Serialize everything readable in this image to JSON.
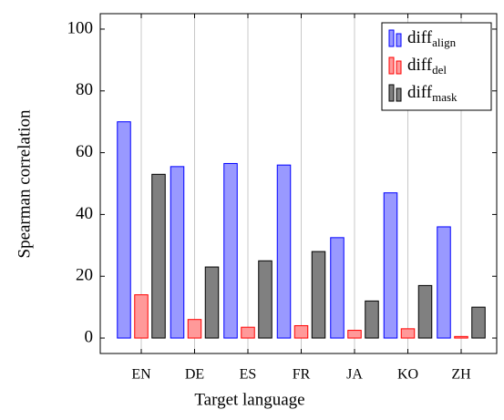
{
  "chart_data": {
    "type": "bar",
    "categories": [
      "EN",
      "DE",
      "ES",
      "FR",
      "JA",
      "KO",
      "ZH"
    ],
    "series": [
      {
        "name": "diff",
        "name_sub": "align",
        "color": "#9999ff",
        "edge": "#0000ff",
        "values": [
          70,
          55.5,
          56.5,
          56,
          32.5,
          47,
          36
        ]
      },
      {
        "name": "diff",
        "name_sub": "del",
        "color": "#ff9999",
        "edge": "#ff0000",
        "values": [
          14,
          6,
          3.5,
          4,
          2.5,
          3,
          0.5
        ]
      },
      {
        "name": "diff",
        "name_sub": "mask",
        "color": "#808080",
        "edge": "#000000",
        "values": [
          53,
          23,
          25,
          28,
          12,
          17,
          10
        ]
      }
    ],
    "xlabel": "Target language",
    "ylabel": "Spearman correlation",
    "ylim": [
      -5,
      105
    ],
    "yticks": [
      0,
      20,
      40,
      60,
      80,
      100
    ],
    "grid": "x",
    "legend": "top-right"
  }
}
